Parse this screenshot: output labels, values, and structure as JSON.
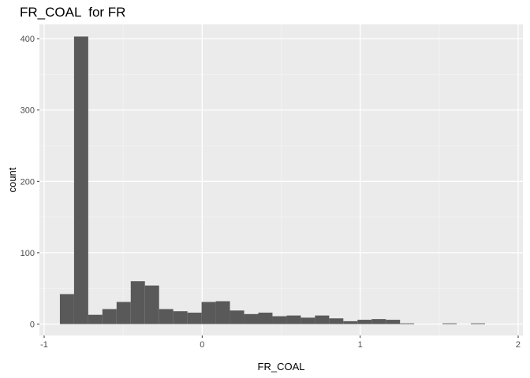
{
  "chart_data": {
    "type": "bar",
    "title": "FR_COAL  for FR",
    "xlabel": "FR_COAL",
    "ylabel": "count",
    "xlim": [
      -1.03,
      2.03
    ],
    "ylim": [
      -16,
      420
    ],
    "xticks": [
      -1,
      0,
      1,
      2
    ],
    "yticks": [
      0,
      100,
      200,
      300,
      400
    ],
    "binwidth": 0.0897,
    "bins": [
      {
        "x": -0.8557,
        "count": 42
      },
      {
        "x": -0.766,
        "count": 403
      },
      {
        "x": -0.6763,
        "count": 13
      },
      {
        "x": -0.5866,
        "count": 21
      },
      {
        "x": -0.4969,
        "count": 31
      },
      {
        "x": -0.4072,
        "count": 60
      },
      {
        "x": -0.3175,
        "count": 54
      },
      {
        "x": -0.2278,
        "count": 21
      },
      {
        "x": -0.1381,
        "count": 18
      },
      {
        "x": -0.0484,
        "count": 16
      },
      {
        "x": 0.0413,
        "count": 31
      },
      {
        "x": 0.131,
        "count": 32
      },
      {
        "x": 0.2207,
        "count": 19
      },
      {
        "x": 0.3104,
        "count": 14
      },
      {
        "x": 0.4001,
        "count": 16
      },
      {
        "x": 0.4898,
        "count": 11
      },
      {
        "x": 0.5795,
        "count": 12
      },
      {
        "x": 0.6692,
        "count": 9
      },
      {
        "x": 0.7589,
        "count": 12
      },
      {
        "x": 0.8486,
        "count": 8
      },
      {
        "x": 0.9383,
        "count": 4
      },
      {
        "x": 1.028,
        "count": 6
      },
      {
        "x": 1.1177,
        "count": 7
      },
      {
        "x": 1.2074,
        "count": 6
      },
      {
        "x": 1.2971,
        "count": 1
      },
      {
        "x": 1.3868,
        "count": 0
      },
      {
        "x": 1.4765,
        "count": 0
      },
      {
        "x": 1.5662,
        "count": 1
      },
      {
        "x": 1.6559,
        "count": 0
      },
      {
        "x": 1.7456,
        "count": 1
      }
    ],
    "colors": {
      "panel_background": "#ebebeb",
      "grid_major": "#ffffff",
      "bar_fill": "#595959",
      "tick_text": "#4d4d4d",
      "tick_mark": "#333333"
    },
    "grid": true,
    "legend": "none"
  }
}
